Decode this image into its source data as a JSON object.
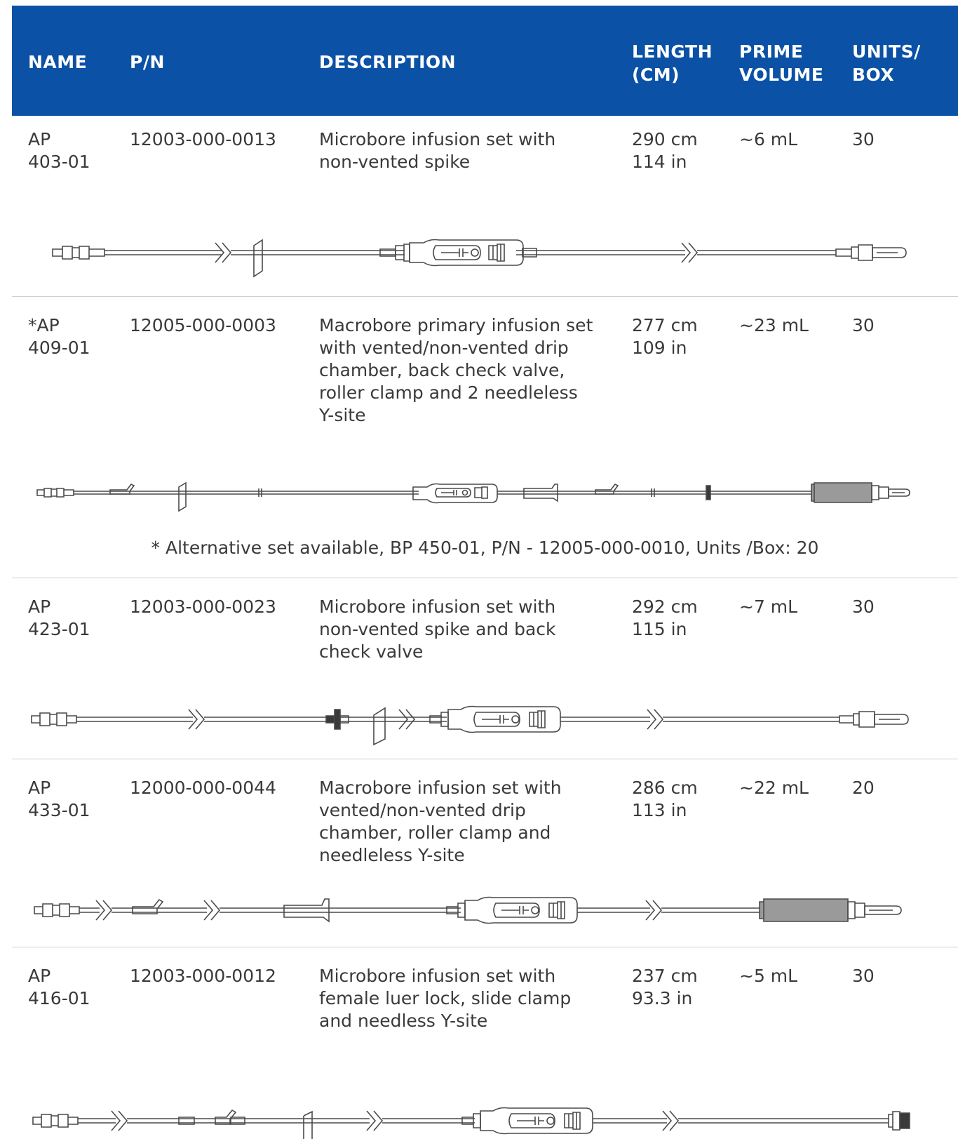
{
  "header": {
    "name": "NAME",
    "pn": "P/N",
    "description": "DESCRIPTION",
    "length_line1": "LENGTH",
    "length_line2": "(CM)",
    "prime_line1": "PRIME",
    "prime_line2": "VOLUME",
    "units_line1": "UNITS/",
    "units_line2": "BOX"
  },
  "rows": [
    {
      "name_line1": "AP",
      "name_line2": "403-01",
      "pn": "12003-000-0013",
      "description": [
        "Microbore infusion set with",
        "non-vented spike"
      ],
      "length_cm": "290 cm",
      "length_in": "114 in",
      "prime_volume": "~6 mL",
      "units_box": "30"
    },
    {
      "name_line1": "*AP",
      "name_line2": "409-01",
      "pn": "12005-000-0003",
      "description": [
        "Macrobore primary infusion set",
        "with vented/non-vented drip",
        "chamber, back check valve,",
        "roller clamp and 2 needleless",
        "Y-site"
      ],
      "length_cm": "277 cm",
      "length_in": "109 in",
      "prime_volume": "~23 mL",
      "units_box": "30"
    },
    {
      "name_line1": "AP",
      "name_line2": "423-01",
      "pn": "12003-000-0023",
      "description": [
        "Microbore infusion set with",
        "non-vented spike and back",
        "check valve"
      ],
      "length_cm": "292 cm",
      "length_in": "115 in",
      "prime_volume": "~7 mL",
      "units_box": "30"
    },
    {
      "name_line1": "AP",
      "name_line2": "433-01",
      "pn": "12000-000-0044",
      "description": [
        "Macrobore infusion set with",
        "vented/non-vented drip",
        "chamber, roller clamp and",
        "needleless Y-site"
      ],
      "length_cm": "286 cm",
      "length_in": "113 in",
      "prime_volume": "~22 mL",
      "units_box": "20"
    },
    {
      "name_line1": "AP",
      "name_line2": "416-01",
      "pn": "12003-000-0012",
      "description": [
        "Microbore infusion set with",
        "female luer lock, slide clamp",
        "and needless Y-site"
      ],
      "length_cm": "237 cm",
      "length_in": "93.3 in",
      "prime_volume": "~5 mL",
      "units_box": "30"
    }
  ],
  "footnote": "* Alternative set available, BP 450-01, P/N - 12005-000-0010, Units /Box: 20"
}
